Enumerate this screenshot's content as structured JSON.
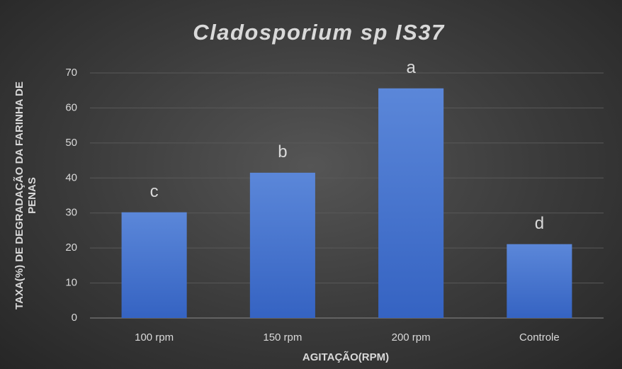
{
  "chart_data": {
    "type": "bar",
    "title": "Cladosporium sp IS37",
    "x_label": "AGITAÇÃO(RPM)",
    "y_label": "TAXA(%) DE DEGRADAÇÃO DA FARINHA DE PENAS",
    "categories": [
      "100 rpm",
      "150 rpm",
      "200 rpm",
      "Controle"
    ],
    "values": [
      30.2,
      41.5,
      65.6,
      21.1
    ],
    "annotations": [
      "c",
      "b",
      "a",
      "d"
    ],
    "color": "#4472c4",
    "ylim": [
      0,
      70
    ],
    "yticks": [
      0,
      10,
      20,
      30,
      40,
      50,
      60,
      70
    ],
    "grid": true
  }
}
